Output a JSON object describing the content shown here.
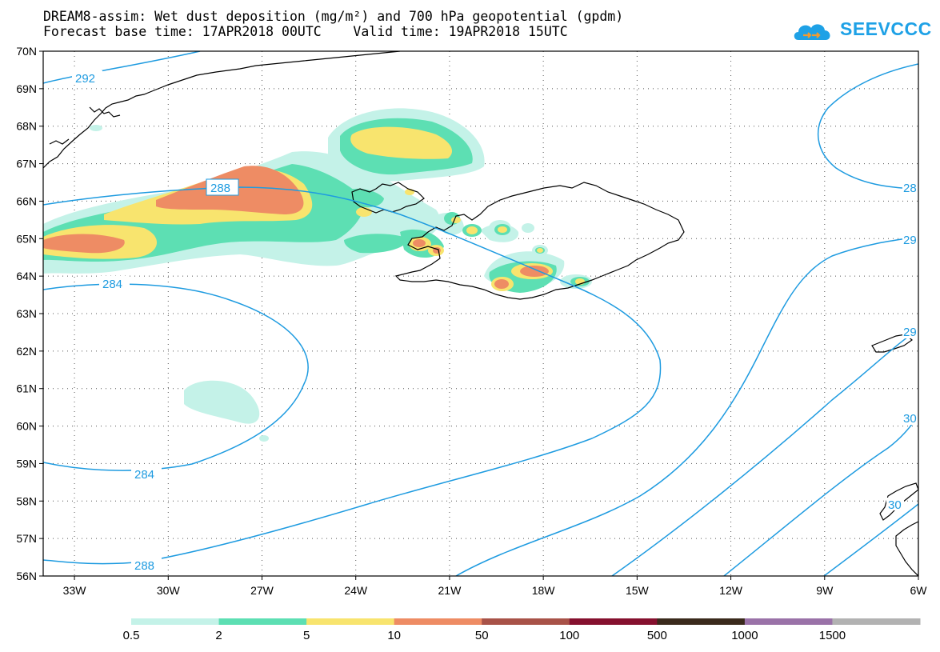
{
  "title": {
    "line1": "DREAM8-assim: Wet dust deposition (mg/m²) and 700 hPa geopotential (gpdm)",
    "line2": "Forecast base time: 17APR2018 00UTC    Valid time: 19APR2018 15UTC"
  },
  "logo": {
    "text": "SEEVCCC",
    "color": "#1ea1e6"
  },
  "map": {
    "lat_ticks": [
      "70N",
      "69N",
      "68N",
      "67N",
      "66N",
      "65N",
      "64N",
      "63N",
      "62N",
      "61N",
      "60N",
      "59N",
      "58N",
      "57N",
      "56N"
    ],
    "lon_ticks": [
      "33W",
      "30W",
      "27W",
      "24W",
      "21W",
      "18W",
      "15W",
      "12W",
      "9W",
      "6W"
    ],
    "contour_color": "#1e9be0",
    "contour_labels": [
      "292",
      "288",
      "284",
      "284",
      "288",
      "28",
      "29",
      "29",
      "30",
      "30"
    ]
  },
  "colorbar": {
    "labels": [
      "0.5",
      "2",
      "5",
      "10",
      "50",
      "100",
      "500",
      "1000",
      "1500"
    ],
    "colors": [
      "#c4f2e8",
      "#5ddfb3",
      "#f8e46e",
      "#ee8c64",
      "#a85248",
      "#85102e",
      "#3a2a1c",
      "#9a72a8",
      "#b2b2b2"
    ]
  }
}
